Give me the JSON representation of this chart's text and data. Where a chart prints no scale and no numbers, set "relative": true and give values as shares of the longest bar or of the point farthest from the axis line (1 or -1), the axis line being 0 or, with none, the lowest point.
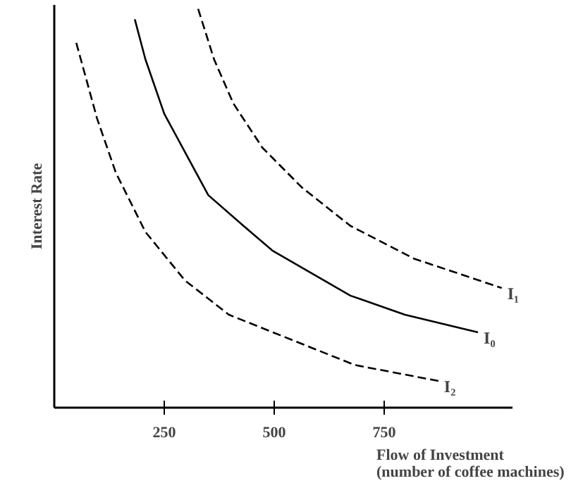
{
  "chart_data": {
    "type": "line",
    "relative": true,
    "xlabel": "Flow of Investment\n(number of coffee machines)",
    "ylabel": "Interest Rate",
    "xlim": [
      0,
      1040
    ],
    "xticks": [
      250,
      500,
      750
    ],
    "grid": false,
    "legend": false,
    "marker": "none",
    "series": [
      {
        "name": "I₁",
        "color": "#000000",
        "line_style": "dashed",
        "x": [
          327,
          363,
          407,
          473,
          563,
          673,
          817,
          1017
        ],
        "values": [
          1.0,
          0.874,
          0.763,
          0.652,
          0.552,
          0.456,
          0.374,
          0.3
        ]
      },
      {
        "name": "I₀",
        "color": "#000000",
        "line_style": "solid",
        "x": [
          183,
          207,
          250,
          350,
          430,
          497,
          673,
          797,
          963
        ],
        "values": [
          0.974,
          0.874,
          0.737,
          0.533,
          0.456,
          0.393,
          0.281,
          0.233,
          0.189
        ]
      },
      {
        "name": "I₂",
        "color": "#000000",
        "line_style": "dashed",
        "x": [
          50,
          97,
          140,
          207,
          297,
          397,
          540,
          683,
          873
        ],
        "values": [
          0.915,
          0.726,
          0.589,
          0.441,
          0.319,
          0.233,
          0.17,
          0.107,
          0.067
        ]
      }
    ]
  }
}
